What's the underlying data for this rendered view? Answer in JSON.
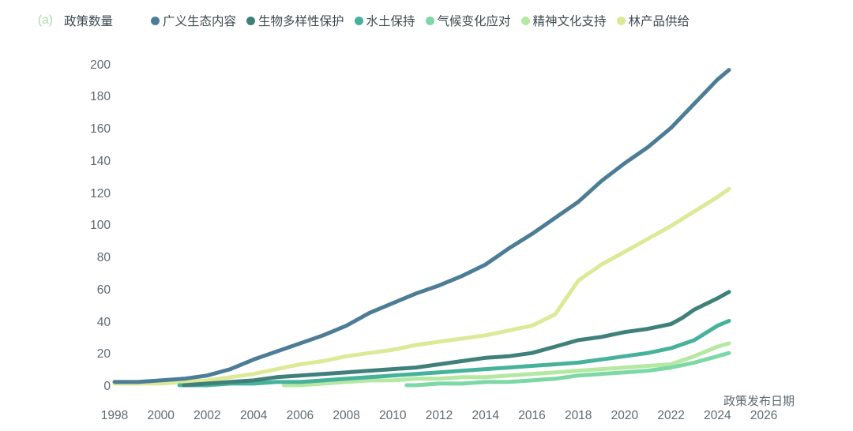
{
  "panel_label": "(a)",
  "y_axis_title": "政策数量",
  "x_axis_title": "政策发布日期",
  "colors": {
    "background": "#ffffff",
    "panel_label": "#a9dcab",
    "tick_text": "#5e6a72",
    "legend_text": "#3d4a50"
  },
  "chart_data": {
    "type": "line",
    "title": "",
    "xlabel": "政策发布日期",
    "ylabel": "政策数量",
    "xlim": [
      1997,
      2027
    ],
    "ylim": [
      0,
      200
    ],
    "grid": false,
    "legend_position": "top",
    "x_ticks": [
      1998,
      2000,
      2002,
      2004,
      2006,
      2008,
      2010,
      2012,
      2014,
      2016,
      2018,
      2020,
      2022,
      2024,
      2026
    ],
    "y_ticks": [
      0,
      20,
      40,
      60,
      80,
      100,
      120,
      140,
      160,
      180,
      200
    ],
    "series": [
      {
        "id": "forest-product-supply",
        "name": "林产品供给",
        "color": "#dcea98",
        "points": [
          [
            1998,
            2
          ],
          [
            1999,
            2
          ],
          [
            2000,
            2
          ],
          [
            2001,
            3
          ],
          [
            2002,
            4
          ],
          [
            2003,
            6
          ],
          [
            2004,
            8
          ],
          [
            2005,
            11
          ],
          [
            2006,
            14
          ],
          [
            2007,
            16
          ],
          [
            2008,
            19
          ],
          [
            2009,
            21
          ],
          [
            2010,
            23
          ],
          [
            2011,
            26
          ],
          [
            2012,
            28
          ],
          [
            2013,
            30
          ],
          [
            2014,
            32
          ],
          [
            2015,
            35
          ],
          [
            2016,
            38
          ],
          [
            2017,
            45
          ],
          [
            2018,
            66
          ],
          [
            2019,
            76
          ],
          [
            2020,
            84
          ],
          [
            2021,
            92
          ],
          [
            2022,
            100
          ],
          [
            2023,
            109
          ],
          [
            2024,
            118
          ],
          [
            2024.5,
            123
          ]
        ]
      },
      {
        "id": "spiritual-culture-support",
        "name": "精神文化支持",
        "color": "#b5e8a2",
        "points": [
          [
            2005.3,
            1
          ],
          [
            2006,
            1
          ],
          [
            2007,
            2
          ],
          [
            2008,
            3
          ],
          [
            2009,
            4
          ],
          [
            2010,
            4
          ],
          [
            2011,
            5
          ],
          [
            2012,
            5
          ],
          [
            2013,
            6
          ],
          [
            2014,
            6
          ],
          [
            2015,
            7
          ],
          [
            2016,
            8
          ],
          [
            2017,
            9
          ],
          [
            2018,
            10
          ],
          [
            2019,
            11
          ],
          [
            2020,
            12
          ],
          [
            2021,
            13
          ],
          [
            2022,
            14
          ],
          [
            2023,
            19
          ],
          [
            2024,
            25
          ],
          [
            2024.5,
            27
          ]
        ]
      },
      {
        "id": "climate-change-response",
        "name": "气候变化应对",
        "color": "#7cd8a6",
        "points": [
          [
            2010.6,
            1
          ],
          [
            2011,
            1
          ],
          [
            2012,
            2
          ],
          [
            2013,
            2
          ],
          [
            2014,
            3
          ],
          [
            2015,
            3
          ],
          [
            2016,
            4
          ],
          [
            2017,
            5
          ],
          [
            2018,
            7
          ],
          [
            2019,
            8
          ],
          [
            2020,
            9
          ],
          [
            2021,
            10
          ],
          [
            2022,
            12
          ],
          [
            2023,
            15
          ],
          [
            2024,
            19
          ],
          [
            2024.5,
            21
          ]
        ]
      },
      {
        "id": "soil-water-conservation",
        "name": "水土保持",
        "color": "#47b29b",
        "points": [
          [
            2000.8,
            1
          ],
          [
            2002,
            1
          ],
          [
            2003,
            2
          ],
          [
            2004,
            2
          ],
          [
            2005,
            3
          ],
          [
            2006,
            3
          ],
          [
            2007,
            4
          ],
          [
            2008,
            5
          ],
          [
            2009,
            6
          ],
          [
            2010,
            7
          ],
          [
            2011,
            8
          ],
          [
            2012,
            9
          ],
          [
            2013,
            10
          ],
          [
            2014,
            11
          ],
          [
            2015,
            12
          ],
          [
            2016,
            13
          ],
          [
            2017,
            14
          ],
          [
            2018,
            15
          ],
          [
            2019,
            17
          ],
          [
            2020,
            19
          ],
          [
            2021,
            21
          ],
          [
            2022,
            24
          ],
          [
            2023,
            29
          ],
          [
            2024,
            38
          ],
          [
            2024.5,
            41
          ]
        ]
      },
      {
        "id": "biodiversity-protection",
        "name": "生物多样性保护",
        "color": "#40807a",
        "points": [
          [
            2001,
            1
          ],
          [
            2002,
            2
          ],
          [
            2003,
            3
          ],
          [
            2004,
            4
          ],
          [
            2005,
            6
          ],
          [
            2006,
            7
          ],
          [
            2007,
            8
          ],
          [
            2008,
            9
          ],
          [
            2009,
            10
          ],
          [
            2010,
            11
          ],
          [
            2011,
            12
          ],
          [
            2012,
            14
          ],
          [
            2013,
            16
          ],
          [
            2014,
            18
          ],
          [
            2015,
            19
          ],
          [
            2016,
            21
          ],
          [
            2017,
            25
          ],
          [
            2018,
            29
          ],
          [
            2019,
            31
          ],
          [
            2020,
            34
          ],
          [
            2021,
            36
          ],
          [
            2022,
            39
          ],
          [
            2022.5,
            43
          ],
          [
            2023,
            48
          ],
          [
            2024,
            55
          ],
          [
            2024.5,
            59
          ]
        ]
      },
      {
        "id": "broad-ecological-content",
        "name": "广义生态内容",
        "color": "#4d7d96",
        "points": [
          [
            1998,
            3
          ],
          [
            1999,
            3
          ],
          [
            2000,
            4
          ],
          [
            2001,
            5
          ],
          [
            2002,
            7
          ],
          [
            2003,
            11
          ],
          [
            2004,
            17
          ],
          [
            2005,
            22
          ],
          [
            2006,
            27
          ],
          [
            2007,
            32
          ],
          [
            2008,
            38
          ],
          [
            2009,
            46
          ],
          [
            2010,
            52
          ],
          [
            2011,
            58
          ],
          [
            2012,
            63
          ],
          [
            2013,
            69
          ],
          [
            2014,
            76
          ],
          [
            2015,
            86
          ],
          [
            2016,
            95
          ],
          [
            2017,
            105
          ],
          [
            2018,
            115
          ],
          [
            2019,
            128
          ],
          [
            2020,
            139
          ],
          [
            2021,
            149
          ],
          [
            2022,
            161
          ],
          [
            2023,
            176
          ],
          [
            2024,
            191
          ],
          [
            2024.5,
            197
          ]
        ]
      }
    ],
    "legend_order": [
      "broad-ecological-content",
      "biodiversity-protection",
      "soil-water-conservation",
      "climate-change-response",
      "spiritual-culture-support",
      "forest-product-supply"
    ]
  }
}
